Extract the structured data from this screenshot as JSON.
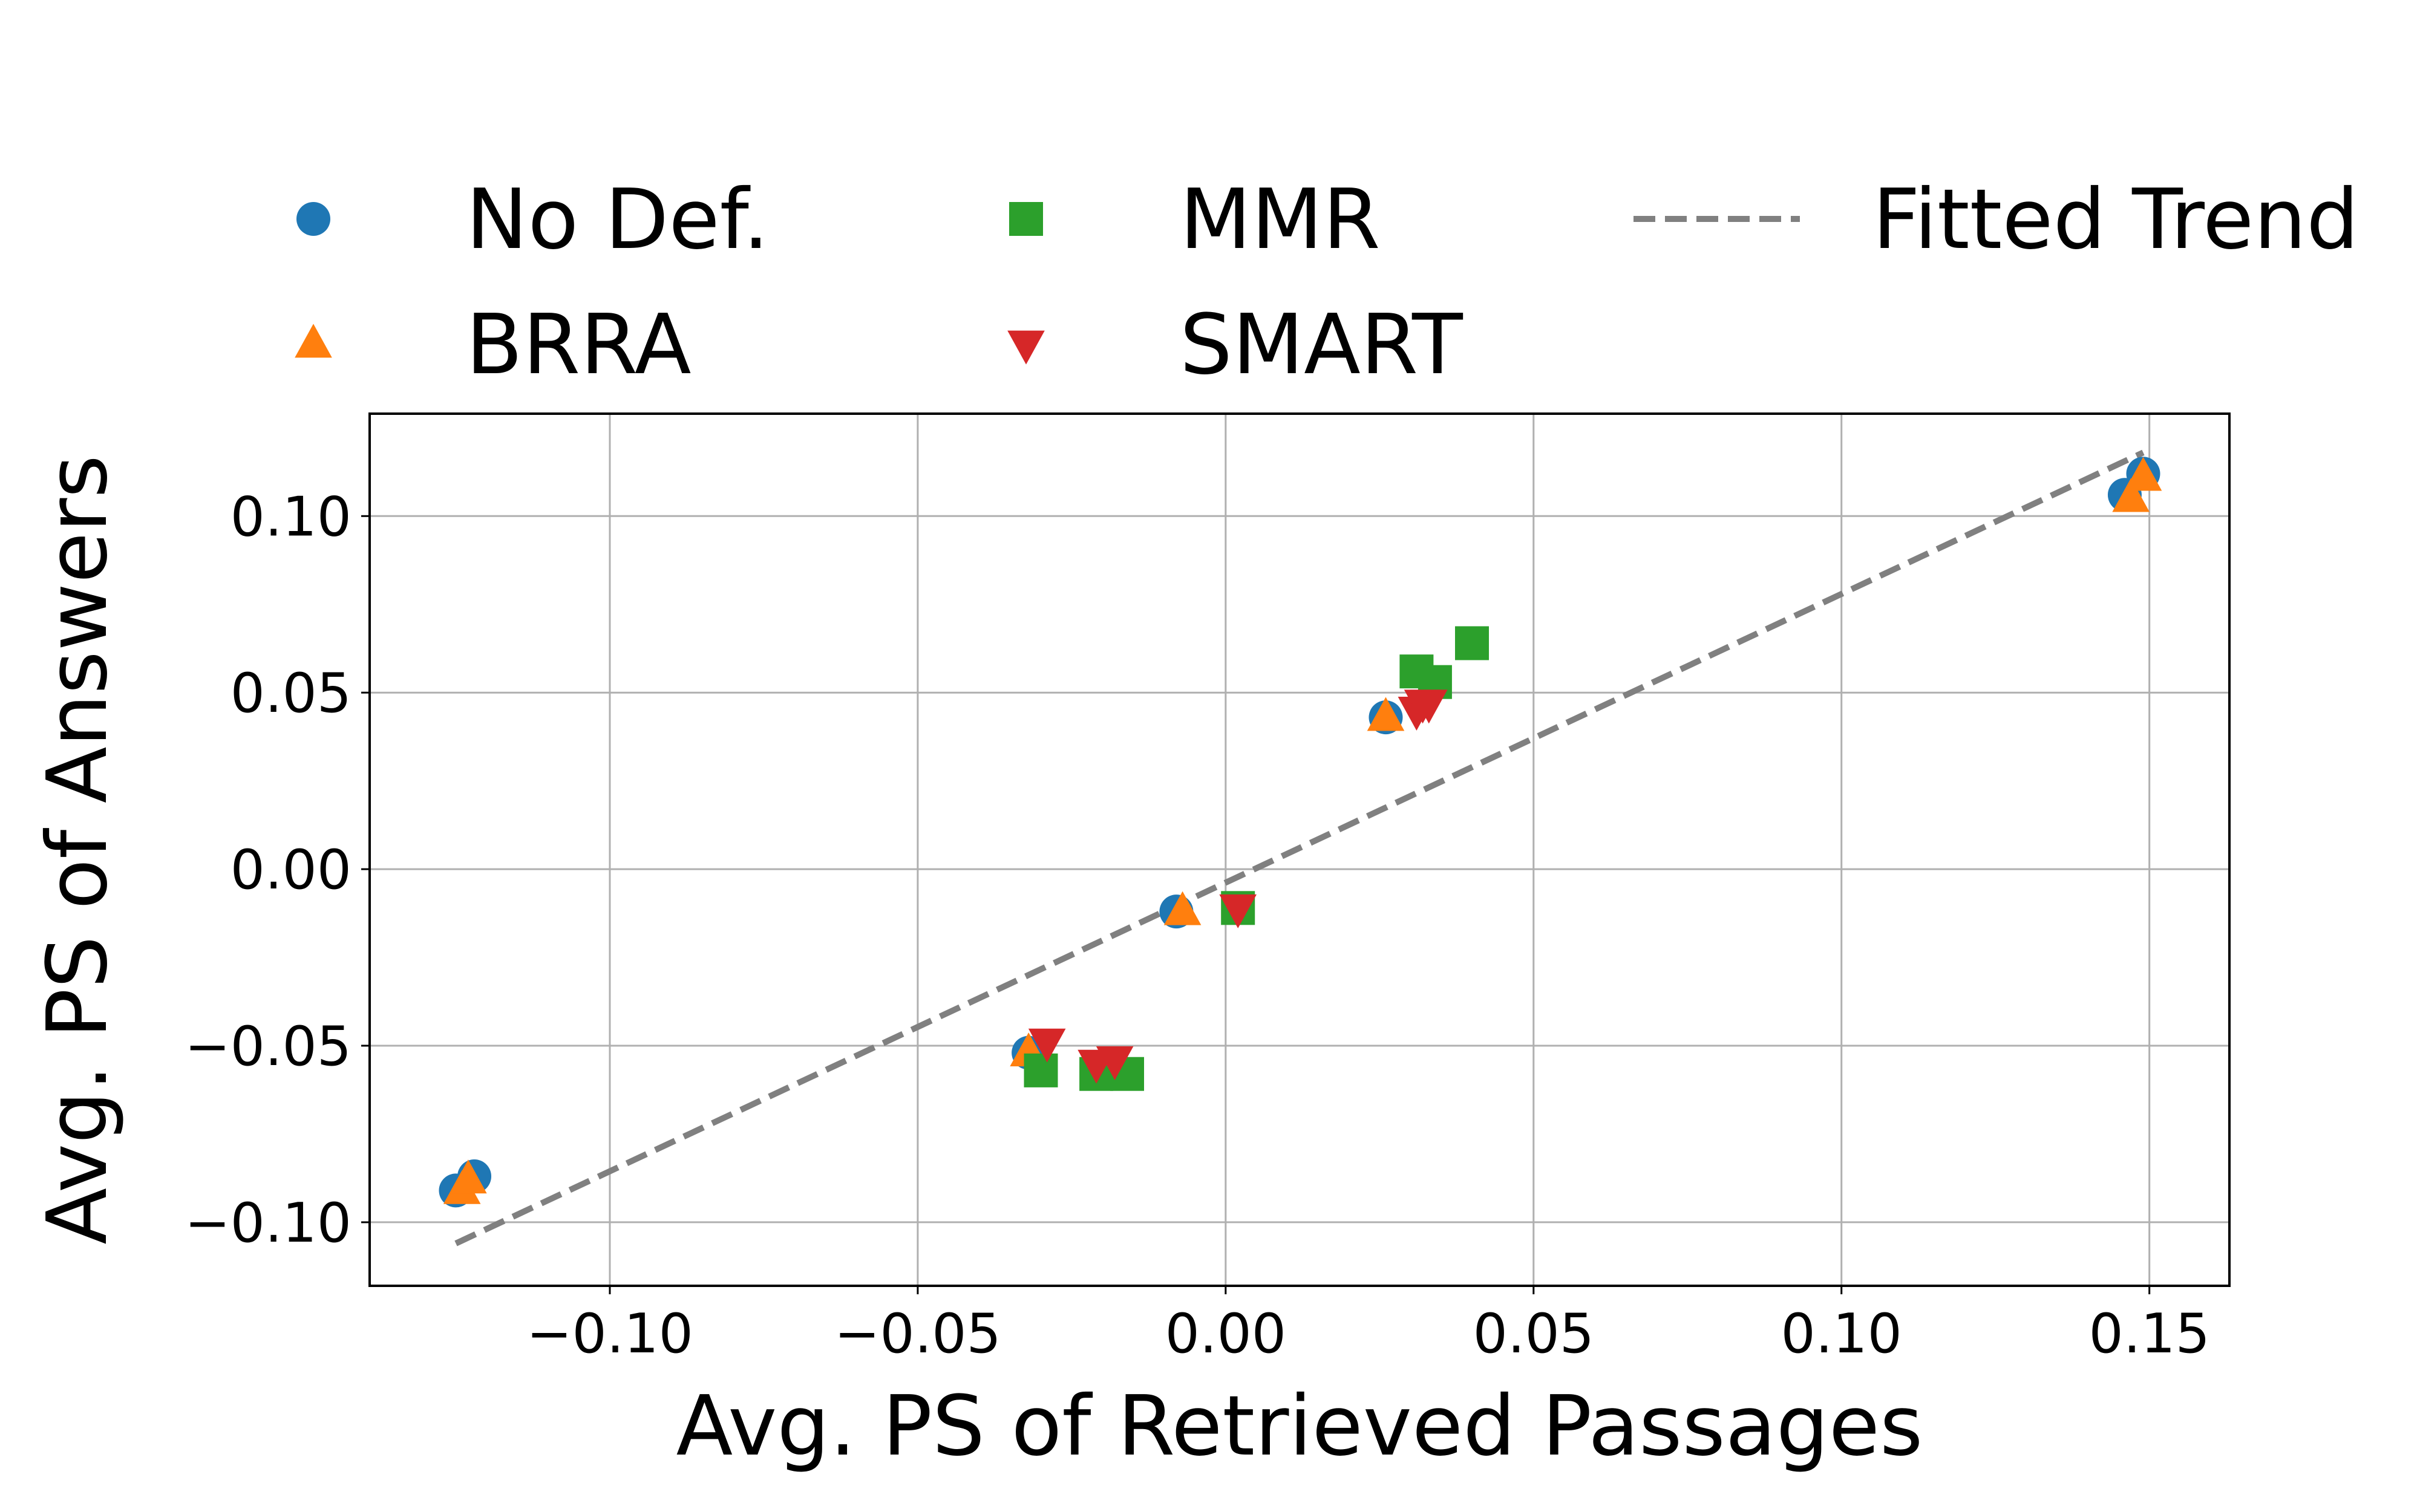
{
  "chart_data": {
    "type": "scatter",
    "title": "",
    "xlabel": "Avg. PS of Retrieved Passages",
    "ylabel": "Avg. PS of Answers",
    "xlim": [
      -0.139,
      0.163
    ],
    "ylim": [
      -0.118,
      0.129
    ],
    "xticks": [
      -0.1,
      -0.05,
      0.0,
      0.05,
      0.1,
      0.15
    ],
    "yticks": [
      -0.1,
      -0.05,
      0.0,
      0.05,
      0.1
    ],
    "xtick_labels": [
      "−0.10",
      "−0.05",
      "0.00",
      "0.05",
      "0.10",
      "0.15"
    ],
    "ytick_labels": [
      "−0.10",
      "−0.05",
      "0.00",
      "0.05",
      "0.10"
    ],
    "grid": true,
    "legend_position": "top",
    "series": [
      {
        "name": "No Def.",
        "marker": "circle",
        "color": "#1f77b4",
        "points": [
          [
            -0.125,
            -0.091
          ],
          [
            -0.122,
            -0.087
          ],
          [
            -0.032,
            -0.052
          ],
          [
            -0.008,
            -0.012
          ],
          [
            0.026,
            0.043
          ],
          [
            0.146,
            0.106
          ],
          [
            0.149,
            0.112
          ]
        ]
      },
      {
        "name": "BRRA",
        "marker": "triangle-up",
        "color": "#ff7f0e",
        "points": [
          [
            -0.124,
            -0.091
          ],
          [
            -0.123,
            -0.088
          ],
          [
            -0.032,
            -0.052
          ],
          [
            -0.007,
            -0.012
          ],
          [
            0.026,
            0.043
          ],
          [
            0.147,
            0.105
          ],
          [
            0.149,
            0.111
          ]
        ]
      },
      {
        "name": "MMR",
        "marker": "square",
        "color": "#2ca02c",
        "points": [
          [
            -0.03,
            -0.057
          ],
          [
            -0.021,
            -0.058
          ],
          [
            -0.016,
            -0.058
          ],
          [
            0.002,
            -0.011
          ],
          [
            0.031,
            0.056
          ],
          [
            0.034,
            0.053
          ],
          [
            0.04,
            0.064
          ]
        ]
      },
      {
        "name": "SMART",
        "marker": "triangle-down",
        "color": "#d62728",
        "points": [
          [
            -0.029,
            -0.049
          ],
          [
            -0.021,
            -0.055
          ],
          [
            -0.018,
            -0.054
          ],
          [
            0.002,
            -0.011
          ],
          [
            0.031,
            0.045
          ],
          [
            0.032,
            0.047
          ],
          [
            0.033,
            0.047
          ]
        ]
      }
    ],
    "trend": {
      "name": "Fitted Trend",
      "style": "dashed",
      "color": "#808080",
      "x": [
        -0.125,
        0.149
      ],
      "y": [
        -0.106,
        0.118
      ]
    }
  }
}
